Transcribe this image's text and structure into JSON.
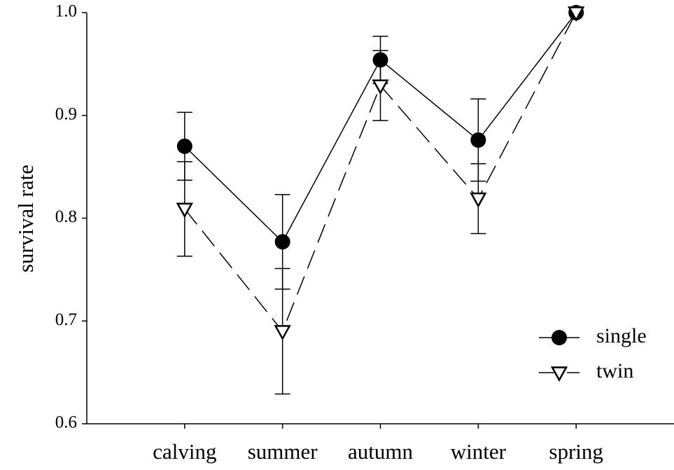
{
  "chart_data": {
    "type": "line",
    "y_label": "survival rate",
    "categories": [
      "calving",
      "summer",
      "autumn",
      "winter",
      "spring"
    ],
    "series": [
      {
        "name": "single",
        "color": "#000000",
        "linestyle": "solid",
        "marker": "circle",
        "values": [
          0.87,
          0.777,
          0.954,
          0.876,
          1.0
        ],
        "errors": [
          0.033,
          0.046,
          0.023,
          0.04,
          0
        ]
      },
      {
        "name": "twin",
        "color": "#000000",
        "linestyle": "dashed",
        "marker": "triangle-down",
        "values": [
          0.809,
          0.69,
          0.929,
          0.819,
          1.0
        ],
        "errors": [
          0.046,
          0.061,
          0.034,
          0.034,
          0
        ]
      }
    ],
    "ylim": [
      0.6,
      1.0
    ],
    "yticks": [
      0.6,
      0.7,
      0.8,
      0.9,
      {
        "value": 1,
        "label": "1.0"
      }
    ],
    "legend": "lower right"
  }
}
